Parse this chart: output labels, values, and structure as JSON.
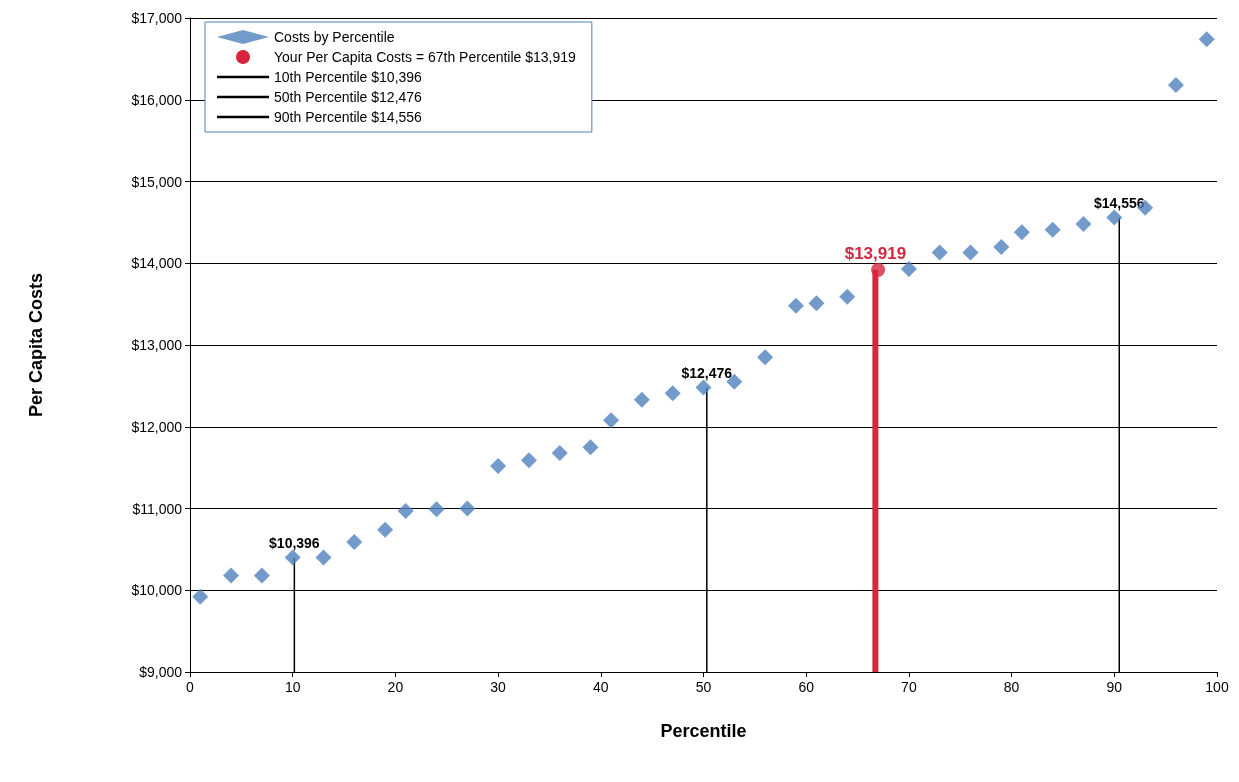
{
  "chart_data": {
    "type": "scatter",
    "xlabel": "Percentile",
    "ylabel": "Per Capita Costs",
    "xlim": [
      0,
      100
    ],
    "xticks": [
      0,
      10,
      20,
      30,
      40,
      50,
      60,
      70,
      80,
      90,
      100
    ],
    "ylim": [
      9000,
      17000
    ],
    "yticks": [
      {
        "value": 9000,
        "label": "$9,000"
      },
      {
        "value": 10000,
        "label": "$10,000"
      },
      {
        "value": 11000,
        "label": "$11,000"
      },
      {
        "value": 12000,
        "label": "$12,000"
      },
      {
        "value": 13000,
        "label": "$13,000"
      },
      {
        "value": 14000,
        "label": "$14,000"
      },
      {
        "value": 15000,
        "label": "$15,000"
      },
      {
        "value": 16000,
        "label": "$16,000"
      },
      {
        "value": 17000,
        "label": "$17,000"
      }
    ],
    "grid": "y",
    "legend": "top left",
    "series": [
      {
        "name": "Costs by Percentile",
        "marker": "diamond",
        "color": "#4f81bd",
        "x": [
          1,
          4,
          7,
          10,
          13,
          16,
          19,
          21,
          24,
          27,
          30,
          33,
          36,
          39,
          41,
          44,
          47,
          50,
          53,
          56,
          59,
          61,
          64,
          70,
          73,
          76,
          79,
          81,
          84,
          87,
          90,
          93,
          96,
          99
        ],
        "values": [
          9920,
          10180,
          10180,
          10400,
          10400,
          10590,
          10740,
          10970,
          10990,
          11000,
          11520,
          11590,
          11680,
          11750,
          12080,
          12330,
          12410,
          12480,
          12550,
          12850,
          13480,
          13510,
          13590,
          13930,
          14130,
          14130,
          14200,
          14380,
          14410,
          14480,
          14560,
          14680,
          16180,
          16740
        ]
      },
      {
        "name": "Your Per Capita Costs = 67th Percentile $13,919",
        "type": "bar",
        "marker": "circle",
        "color": "#d7263d",
        "x": [
          67
        ],
        "values": [
          13919
        ],
        "value_labels": [
          "$13,919"
        ]
      },
      {
        "type": "scatter",
        "marker": "circle",
        "color": "#d7263d",
        "x": [
          67
        ],
        "values": [
          13919
        ]
      },
      {
        "name": "10th Percentile $10,396",
        "type": "bar",
        "marker": "none",
        "color": "#000000",
        "x": [
          10
        ],
        "values": [
          10396
        ],
        "value_labels": [
          "$10,396"
        ]
      },
      {
        "name": "50th Percentile $12,476",
        "type": "bar",
        "marker": "none",
        "color": "#000000",
        "x": [
          50
        ],
        "values": [
          12476
        ],
        "value_labels": [
          "$12,476"
        ]
      },
      {
        "name": "90th Percentile $14,556",
        "type": "bar",
        "marker": "none",
        "color": "#000000",
        "x": [
          90
        ],
        "values": [
          14556
        ],
        "value_labels": [
          "$14,556"
        ]
      }
    ]
  }
}
